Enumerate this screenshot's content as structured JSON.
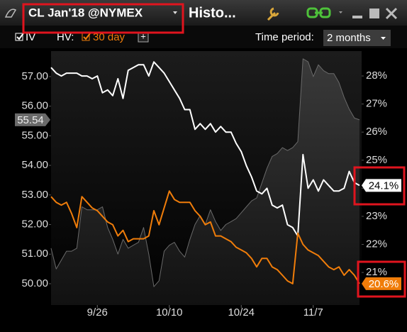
{
  "window": {
    "title": "CL Jan'18 @NYMEX",
    "tab": "Histo...",
    "hv_label": "HV:",
    "add_button": "+",
    "period_label": "Time period:",
    "period_value": "2 months"
  },
  "chart_data": {
    "type": "line",
    "categories": [
      null,
      null,
      null,
      null,
      null,
      null,
      null,
      null,
      null,
      "9/26",
      null,
      null,
      null,
      null,
      null,
      null,
      null,
      null,
      null,
      null,
      null,
      null,
      null,
      "10/10",
      null,
      null,
      null,
      null,
      null,
      null,
      null,
      null,
      null,
      null,
      null,
      null,
      null,
      "10/24",
      null,
      null,
      null,
      null,
      null,
      null,
      null,
      null,
      null,
      null,
      null,
      null,
      null,
      "11/7",
      null,
      null,
      null,
      null,
      null,
      null,
      null,
      null,
      null
    ],
    "ylim": [
      49.28,
      57.79
    ],
    "yticks": [
      {
        "value": 50,
        "label": "50.00"
      },
      {
        "value": 51,
        "label": "51.00"
      },
      {
        "value": 52,
        "label": "52.00"
      },
      {
        "value": 53,
        "label": "53.00"
      },
      {
        "value": 54,
        "label": "54.00"
      },
      {
        "value": 55,
        "label": "55.00"
      },
      {
        "value": 56,
        "label": "56.00"
      },
      {
        "value": 57,
        "label": "57.00"
      }
    ],
    "y2lim": [
      19.84,
      28.81
    ],
    "y2ticks": [
      {
        "value": 21,
        "label": "21%"
      },
      {
        "value": 22,
        "label": "22%"
      },
      {
        "value": 23,
        "label": "23%"
      },
      {
        "value": 24,
        "label": "24%"
      },
      {
        "value": 25,
        "label": "25%"
      },
      {
        "value": 26,
        "label": "26%"
      },
      {
        "value": 27,
        "label": "27%"
      },
      {
        "value": 28,
        "label": "28%"
      }
    ],
    "series": [
      {
        "color": "#6a6a6a",
        "area": true,
        "last_value_tag": true,
        "values": [
          51.2,
          50.5,
          50.8,
          51.1,
          51.1,
          51.2,
          52.6,
          52.5,
          52.5,
          52.5,
          52.6,
          51.9,
          51.5,
          51.0,
          51.5,
          51.2,
          51.3,
          51.4,
          51.9,
          51.0,
          49.9,
          50.1,
          51.1,
          51.3,
          51.4,
          51.1,
          50.9,
          51.5,
          52.0,
          52.3,
          52.0,
          52.5,
          52.1,
          51.8,
          52.0,
          52.1,
          52.2,
          52.4,
          52.6,
          52.8,
          52.9,
          53.4,
          53.9,
          54.3,
          54.4,
          54.6,
          54.5,
          54.6,
          54.8,
          57.6,
          57.5,
          57.0,
          57.4,
          57.2,
          57.1,
          57.1,
          56.8,
          56.3,
          55.9,
          55.6,
          55.54
        ]
      },
      {
        "name": "IV",
        "color": "#ffffff",
        "axis": "y2",
        "values": [
          28.3,
          28.1,
          28.0,
          28.1,
          28.1,
          28.1,
          28.0,
          28.0,
          27.9,
          28.0,
          27.4,
          27.5,
          27.3,
          27.9,
          27.2,
          28.2,
          28.3,
          28.4,
          28.4,
          28.0,
          28.5,
          28.3,
          28.1,
          27.8,
          27.5,
          27.2,
          26.8,
          26.8,
          26.1,
          26.3,
          26.1,
          26.3,
          26.0,
          26.2,
          26.0,
          26.0,
          25.6,
          25.3,
          24.8,
          24.4,
          23.9,
          23.8,
          24.0,
          23.4,
          23.3,
          23.4,
          22.7,
          22.6,
          22.3,
          25.2,
          24.0,
          24.3,
          23.9,
          24.3,
          24.1,
          23.9,
          23.9,
          24.0,
          24.6,
          24.2,
          24.1
        ],
        "value_labels": [
          null,
          null,
          null,
          null,
          null,
          null,
          null,
          null,
          null,
          null,
          null,
          null,
          null,
          null,
          null,
          null,
          null,
          null,
          null,
          null,
          null,
          null,
          null,
          null,
          null,
          null,
          null,
          null,
          null,
          null,
          null,
          null,
          null,
          null,
          null,
          null,
          null,
          null,
          null,
          null,
          null,
          null,
          null,
          null,
          null,
          null,
          null,
          null,
          null,
          null,
          null,
          null,
          null,
          null,
          null,
          null,
          null,
          null,
          null,
          null,
          "24.1%"
        ]
      },
      {
        "name": "30 day",
        "color": "#f07d0a",
        "axis": "y2",
        "values": [
          23.7,
          23.5,
          23.4,
          23.5,
          23.1,
          22.6,
          23.7,
          23.5,
          23.3,
          23.2,
          23.0,
          22.8,
          22.7,
          22.3,
          22.5,
          22.1,
          22.2,
          22.2,
          22.2,
          22.3,
          23.2,
          22.7,
          23.3,
          23.9,
          23.6,
          23.5,
          23.5,
          23.5,
          23.2,
          23.0,
          22.7,
          22.8,
          22.3,
          22.3,
          22.2,
          22.1,
          21.9,
          21.8,
          21.7,
          21.5,
          21.2,
          21.5,
          21.5,
          21.2,
          21.1,
          20.9,
          20.7,
          20.6,
          22.4,
          22.0,
          21.8,
          21.7,
          21.6,
          21.4,
          21.2,
          21.1,
          21.2,
          20.9,
          21.1,
          20.9,
          20.6
        ],
        "value_labels": [
          null,
          null,
          null,
          null,
          null,
          null,
          null,
          null,
          null,
          null,
          null,
          null,
          null,
          null,
          null,
          null,
          null,
          null,
          null,
          null,
          null,
          null,
          null,
          null,
          null,
          null,
          null,
          null,
          null,
          null,
          null,
          null,
          null,
          null,
          null,
          null,
          null,
          null,
          null,
          null,
          null,
          null,
          null,
          null,
          null,
          null,
          null,
          null,
          null,
          null,
          null,
          null,
          null,
          null,
          null,
          null,
          null,
          null,
          null,
          null,
          "20.6%"
        ]
      }
    ]
  }
}
